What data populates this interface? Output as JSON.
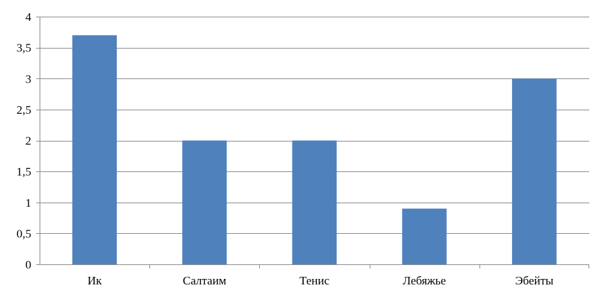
{
  "chart_data": {
    "type": "bar",
    "title": "",
    "xlabel": "",
    "ylabel": "",
    "categories": [
      "Ик",
      "Салтаим",
      "Тенис",
      "Лебяжье",
      "Эбейты"
    ],
    "values": [
      3.7,
      2,
      2,
      0.9,
      3
    ],
    "ylim": [
      0,
      4
    ],
    "ytick_step": 0.5,
    "ytick_labels": [
      "0",
      "0,5",
      "1",
      "1,5",
      "2",
      "2,5",
      "3",
      "3,5",
      "4"
    ],
    "grid": true,
    "legend": "none",
    "colors": {
      "bar": "#4F81BD",
      "grid": "#8C8C8C",
      "axis": "#8C8C8C"
    }
  }
}
